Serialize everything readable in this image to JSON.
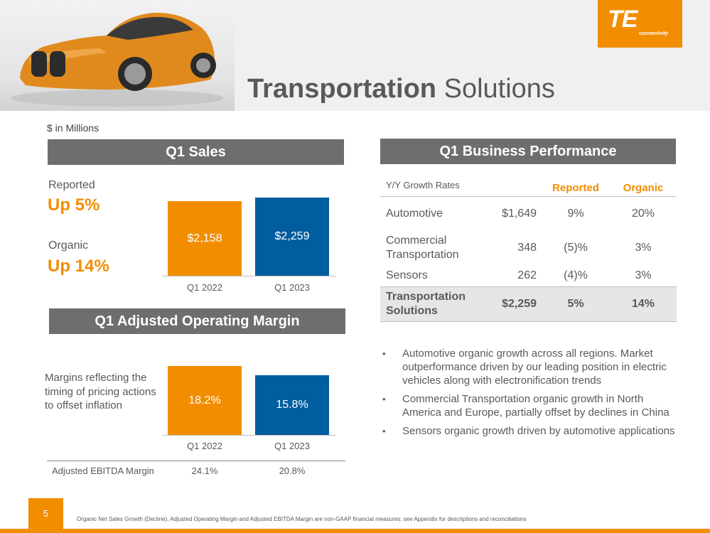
{
  "header": {
    "title_bold": "Transportation",
    "title_rest": "Solutions",
    "logo_mark": "TE",
    "logo_sub": "connectivity"
  },
  "units_note": "$ in Millions",
  "sales": {
    "heading": "Q1 Sales",
    "reported_label": "Reported",
    "reported_value": "Up 5%",
    "organic_label": "Organic",
    "organic_value": "Up 14%"
  },
  "margin": {
    "heading": "Q1 Adjusted Operating Margin",
    "note": "Margins reflecting the timing of pricing actions to offset inflation",
    "ebitda_label": "Adjusted EBITDA Margin",
    "ebitda_values": [
      "24.1%",
      "20.8%"
    ]
  },
  "chart_data": [
    {
      "type": "bar",
      "categories": [
        "Q1 2022",
        "Q1 2023"
      ],
      "values": [
        2158,
        2259
      ],
      "data_labels": [
        "$2,158",
        "$2,259"
      ],
      "colors": [
        "#f28d00",
        "#005d9e"
      ],
      "title": "Q1 Sales",
      "ylim": [
        0,
        2400
      ]
    },
    {
      "type": "bar",
      "categories": [
        "Q1 2022",
        "Q1 2023"
      ],
      "values": [
        18.2,
        15.8
      ],
      "data_labels": [
        "18.2%",
        "15.8%"
      ],
      "colors": [
        "#f28d00",
        "#005d9e"
      ],
      "title": "Q1 Adjusted Operating Margin",
      "ylim": [
        0,
        19.5
      ]
    }
  ],
  "performance": {
    "heading": "Q1 Business Performance",
    "col_label": "Y/Y Growth Rates",
    "col_reported": "Reported",
    "col_organic": "Organic",
    "rows": [
      {
        "name": "Automotive",
        "sales": "$1,649",
        "reported": "9%",
        "organic": "20%"
      },
      {
        "name": "Commercial Transportation",
        "sales": "348",
        "reported": "(5)%",
        "organic": "3%"
      },
      {
        "name": "Sensors",
        "sales": "262",
        "reported": "(4)%",
        "organic": "3%"
      }
    ],
    "total": {
      "name": "Transportation Solutions",
      "sales": "$2,259",
      "reported": "5%",
      "organic": "14%"
    }
  },
  "bullets": [
    "Automotive organic growth across all regions. Market outperformance driven by our leading position in electric vehicles along with electronification trends",
    "Commercial Transportation organic growth in North America and Europe, partially offset by declines in China",
    "Sensors organic growth driven by automotive applications"
  ],
  "footer": {
    "page_number": "5",
    "footnote": "Organic Net Sales Growth (Decline), Adjusted Operating Margin and Adjusted EBITDA Margin are non-GAAP financial measures: see Appendix for descriptions and reconciliations"
  },
  "colors": {
    "accent": "#f28d00",
    "blue": "#005d9e",
    "header_gray": "#6e6e6e"
  }
}
